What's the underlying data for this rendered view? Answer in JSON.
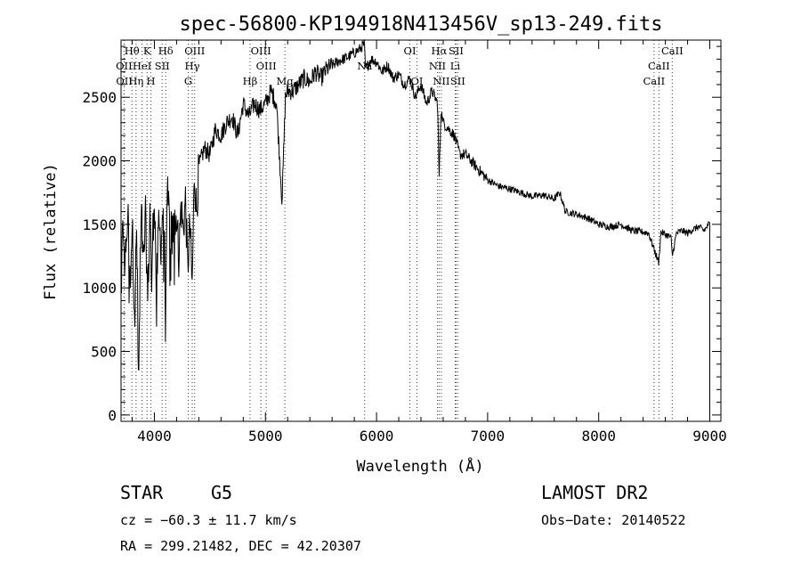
{
  "chart_data": {
    "type": "line",
    "title": "spec-56800-KP194918N413456V_sp13-249.fits",
    "xlabel": "Wavelength (Å)",
    "ylabel": "Flux (relative)",
    "xlim": [
      3700,
      9100
    ],
    "ylim": [
      -50,
      2950
    ],
    "x_ticks": [
      4000,
      5000,
      6000,
      7000,
      8000,
      9000
    ],
    "y_ticks": [
      0,
      500,
      1000,
      1500,
      2000,
      2500
    ],
    "grid": false,
    "series": [
      {
        "x": [
          3700,
          3720,
          3740,
          3760,
          3780,
          3800,
          3820,
          3840,
          3860,
          3880,
          3900,
          3920,
          3940,
          3960,
          3980,
          4000,
          4020,
          4040,
          4060,
          4080,
          4100,
          4120,
          4140,
          4160,
          4180,
          4200,
          4220,
          4240,
          4260,
          4280,
          4300,
          4320,
          4340,
          4360,
          4380,
          4400,
          4450,
          4500,
          4550,
          4600,
          4650,
          4700,
          4750,
          4800,
          4850,
          4900,
          4950,
          5000,
          5050,
          5100,
          5150,
          5180,
          5200,
          5250,
          5300,
          5350,
          5400,
          5450,
          5500,
          5550,
          5600,
          5650,
          5700,
          5750,
          5800,
          5850,
          5890,
          5900,
          5950,
          6000,
          6050,
          6100,
          6150,
          6200,
          6250,
          6300,
          6350,
          6400,
          6450,
          6500,
          6550,
          6563,
          6580,
          6600,
          6650,
          6700,
          6750,
          6800,
          6900,
          7000,
          7100,
          7200,
          7300,
          7400,
          7500,
          7600,
          7650,
          7700,
          7800,
          7900,
          8000,
          8100,
          8200,
          8300,
          8400,
          8450,
          8500,
          8540,
          8560,
          8600,
          8650,
          8662,
          8700,
          8750,
          8800,
          8850,
          8900,
          8950,
          8990,
          9000
        ],
        "y": [
          1150,
          1480,
          1300,
          1600,
          1050,
          1500,
          900,
          1450,
          300,
          1700,
          1150,
          1550,
          900,
          1600,
          1250,
          1750,
          1000,
          1500,
          1350,
          1650,
          1050,
          1700,
          1500,
          1400,
          1500,
          1600,
          1250,
          1650,
          1450,
          1700,
          1150,
          1500,
          1000,
          1900,
          1600,
          1950,
          2100,
          2050,
          2250,
          2200,
          2300,
          2350,
          2200,
          2450,
          2350,
          2450,
          2400,
          2450,
          2550,
          2450,
          1680,
          2500,
          2550,
          2550,
          2600,
          2650,
          2620,
          2700,
          2650,
          2720,
          2750,
          2780,
          2800,
          2820,
          2850,
          2880,
          2920,
          2720,
          2800,
          2780,
          2700,
          2750,
          2650,
          2680,
          2600,
          2650,
          2500,
          2600,
          2450,
          2550,
          2450,
          1850,
          2400,
          2300,
          2250,
          2200,
          2050,
          2050,
          1950,
          1850,
          1800,
          1780,
          1750,
          1720,
          1730,
          1700,
          1750,
          1600,
          1580,
          1550,
          1500,
          1480,
          1500,
          1450,
          1440,
          1430,
          1300,
          1200,
          1440,
          1420,
          1400,
          1250,
          1430,
          1450,
          1430,
          1460,
          1480,
          1450,
          1500,
          1500
        ]
      }
    ],
    "line_markers": [
      {
        "label": "Hθ",
        "x": 3798,
        "row": 0
      },
      {
        "label": "K",
        "x": 3934,
        "row": 0
      },
      {
        "label": "Hδ",
        "x": 4102,
        "row": 0
      },
      {
        "label": "OII",
        "x": 3727,
        "row": 1
      },
      {
        "label": "HeI",
        "x": 3889,
        "row": 1
      },
      {
        "label": "SII",
        "x": 4070,
        "row": 1
      },
      {
        "label": "OII",
        "x": 3729,
        "row": 2
      },
      {
        "label": "Hη",
        "x": 3835,
        "row": 2
      },
      {
        "label": "H",
        "x": 3969,
        "row": 2
      },
      {
        "label": "OIII",
        "x": 4363,
        "row": 0
      },
      {
        "label": "Hγ",
        "x": 4341,
        "row": 1
      },
      {
        "label": "G",
        "x": 4305,
        "row": 2
      },
      {
        "label": "OIII",
        "x": 4959,
        "row": 0
      },
      {
        "label": "OIII",
        "x": 5007,
        "row": 1
      },
      {
        "label": "Hβ",
        "x": 4861,
        "row": 2
      },
      {
        "label": "Mg",
        "x": 5175,
        "row": 2
      },
      {
        "label": "Na",
        "x": 5893,
        "row": 1
      },
      {
        "label": "OI",
        "x": 6300,
        "row": 0
      },
      {
        "label": "OI",
        "x": 6364,
        "row": 2
      },
      {
        "label": "Hα",
        "x": 6563,
        "row": 0
      },
      {
        "label": "SII",
        "x": 6716,
        "row": 0
      },
      {
        "label": "NII",
        "x": 6548,
        "row": 1
      },
      {
        "label": "Li",
        "x": 6708,
        "row": 1
      },
      {
        "label": "NII",
        "x": 6583,
        "row": 2
      },
      {
        "label": "SII",
        "x": 6731,
        "row": 2
      },
      {
        "label": "CaII",
        "x": 8662,
        "row": 0
      },
      {
        "label": "CaII",
        "x": 8542,
        "row": 1
      },
      {
        "label": "CaII",
        "x": 8498,
        "row": 2
      }
    ],
    "marker_color": "#cc0000"
  },
  "info": {
    "class": "STAR",
    "subclass": "G5",
    "survey": "LAMOST DR2",
    "cz": "cz = −60.3 ± 11.7 km/s",
    "obs_date": "Obs−Date: 20140522",
    "radec": "RA = 299.21482, DEC =  42.20307"
  }
}
